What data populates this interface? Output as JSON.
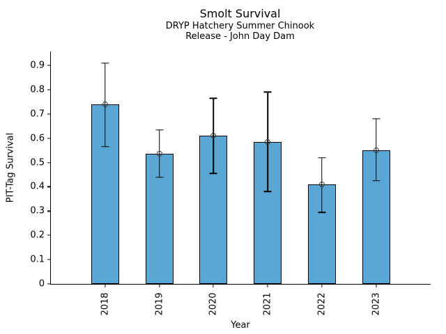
{
  "header": {
    "title": "Smolt Survival",
    "subtitle_line1": "DRYP Hatchery Summer Chinook",
    "subtitle_line2": "Release - John Day Dam"
  },
  "colors": {
    "bar_fill": "#5aa6d4",
    "bar_edge": "#000000",
    "error_bar": "#000000",
    "marker_edge": "#3a3a3a",
    "text": "#000000",
    "background": "#ffffff"
  },
  "chart_data": {
    "type": "bar",
    "title": "Smolt Survival",
    "subtitle1": "DRYP Hatchery Summer Chinook",
    "subtitle2": "Release - John Day Dam",
    "categories": [
      "2018",
      "2019",
      "2020",
      "2021",
      "2022",
      "2023"
    ],
    "values": [
      0.74,
      0.535,
      0.61,
      0.585,
      0.41,
      0.55
    ],
    "error_low": [
      0.565,
      0.44,
      0.455,
      0.38,
      0.295,
      0.425
    ],
    "error_high": [
      0.91,
      0.635,
      0.765,
      0.79,
      0.52,
      0.68
    ],
    "xlabel": "Year",
    "ylabel": "PIT-Tag Survival",
    "ylim": [
      0,
      0.96
    ],
    "yticks": [
      0,
      0.1,
      0.2,
      0.3,
      0.4,
      0.5,
      0.6,
      0.7,
      0.8,
      0.9
    ],
    "ytick_labels": [
      "0",
      "0.1",
      "0.2",
      "0.3",
      "0.4",
      "0.5",
      "0.6",
      "0.7",
      "0.8",
      "0.9"
    ],
    "grid": false,
    "legend": "none",
    "marker": "open-circle",
    "xtick_rotation_deg": 90
  }
}
